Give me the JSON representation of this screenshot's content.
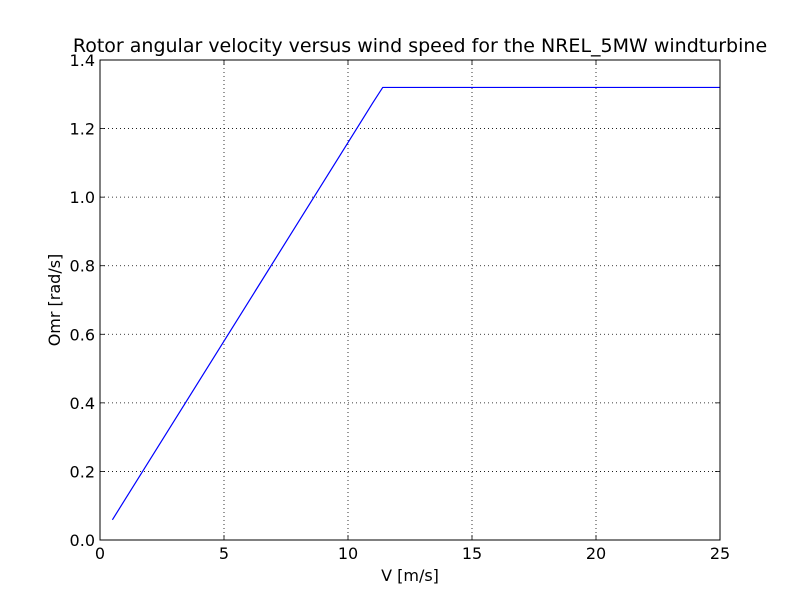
{
  "chart_data": {
    "type": "line",
    "title": "Rotor angular velocity versus wind speed for the NREL_5MW windturbine",
    "xlabel": "V [m/s]",
    "ylabel": "Omr [rad/s]",
    "xlim": [
      0,
      25
    ],
    "ylim": [
      0,
      1.4
    ],
    "xticks": [
      0,
      5,
      10,
      15,
      20,
      25
    ],
    "xtick_labels": [
      "0",
      "5",
      "10",
      "15",
      "20",
      "25"
    ],
    "yticks": [
      0,
      0.2,
      0.4,
      0.6,
      0.8,
      1.0,
      1.2,
      1.4
    ],
    "ytick_labels": [
      "0.0",
      "0.2",
      "0.4",
      "0.6",
      "0.8",
      "1.0",
      "1.2",
      "1.4"
    ],
    "grid": true,
    "legend": false,
    "series": [
      {
        "color": "#0000ff",
        "x": [
          0.5,
          11.0,
          11.4,
          25.0
        ],
        "y": [
          0.059,
          1.275,
          1.32,
          1.32
        ]
      }
    ]
  }
}
